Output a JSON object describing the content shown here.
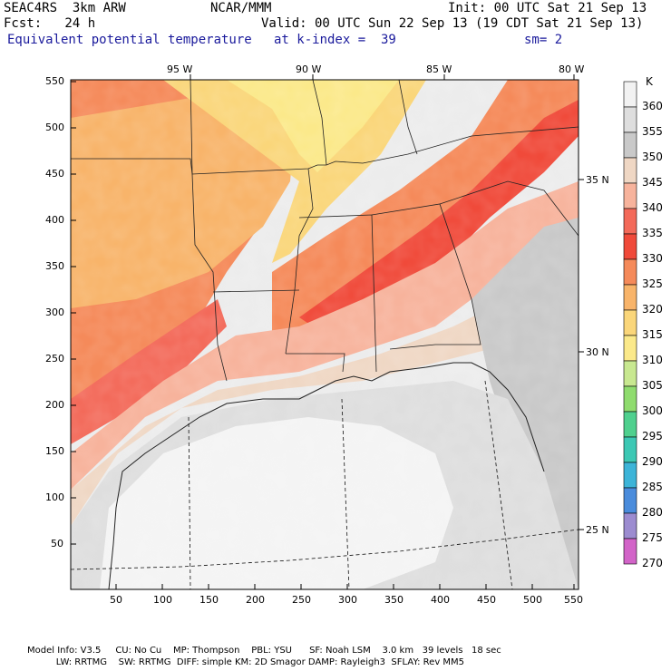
{
  "header": {
    "model": "SEAC4RS  3km ARW",
    "org": "NCAR/MMM",
    "init": "Init: 00 UTC Sat 21 Sep 13",
    "fcst": "Fcst:   24 h",
    "valid": "Valid: 00 UTC Sun 22 Sep 13 (19 CDT Sat 21 Sep 13)",
    "field": "Equivalent potential temperature",
    "level": "at k-index =  39",
    "smooth": "sm= 2"
  },
  "map": {
    "lon_labels": [
      "95 W",
      "90 W",
      "85 W",
      "80 W"
    ],
    "lat_labels": [
      "35 N",
      "30 N",
      "25 N"
    ],
    "y_ticks": [
      "550",
      "500",
      "450",
      "400",
      "350",
      "300",
      "250",
      "200",
      "150",
      "100",
      "50"
    ],
    "x_ticks": [
      "50",
      "100",
      "150",
      "200",
      "250",
      "300",
      "350",
      "400",
      "450",
      "500",
      "550"
    ]
  },
  "colorbar": {
    "unit": "K",
    "levels": [
      {
        "label": "360",
        "color": "#f2f2f2"
      },
      {
        "label": "355",
        "color": "#dedede"
      },
      {
        "label": "350",
        "color": "#c9c9c9"
      },
      {
        "label": "345",
        "color": "#efd7c4"
      },
      {
        "label": "340",
        "color": "#f7b39c"
      },
      {
        "label": "335",
        "color": "#f36a5a"
      },
      {
        "label": "330",
        "color": "#f04a3a"
      },
      {
        "label": "325",
        "color": "#f58a5a"
      },
      {
        "label": "320",
        "color": "#f8b46a"
      },
      {
        "label": "315",
        "color": "#fad67a"
      },
      {
        "label": "310",
        "color": "#fbe98a"
      },
      {
        "label": "305",
        "color": "#c8e890"
      },
      {
        "label": "300",
        "color": "#8fdc6e"
      },
      {
        "label": "295",
        "color": "#4fd08e"
      },
      {
        "label": "290",
        "color": "#3cc8b4"
      },
      {
        "label": "285",
        "color": "#3cb4d8"
      },
      {
        "label": "280",
        "color": "#4a8cdc"
      },
      {
        "label": "275",
        "color": "#9c8cd0"
      },
      {
        "label": "270",
        "color": "#d264c8"
      }
    ]
  },
  "footer": {
    "line1": "Model Info: V3.5     CU: No Cu    MP: Thompson    PBL: YSU      SF: Noah LSM    3.0 km   39 levels   18 sec",
    "line2": "          LW: RRTMG    SW: RRTMG  DIFF: simple KM: 2D Smagor DAMP: Rayleigh3  SFLAY: Rev MM5"
  }
}
